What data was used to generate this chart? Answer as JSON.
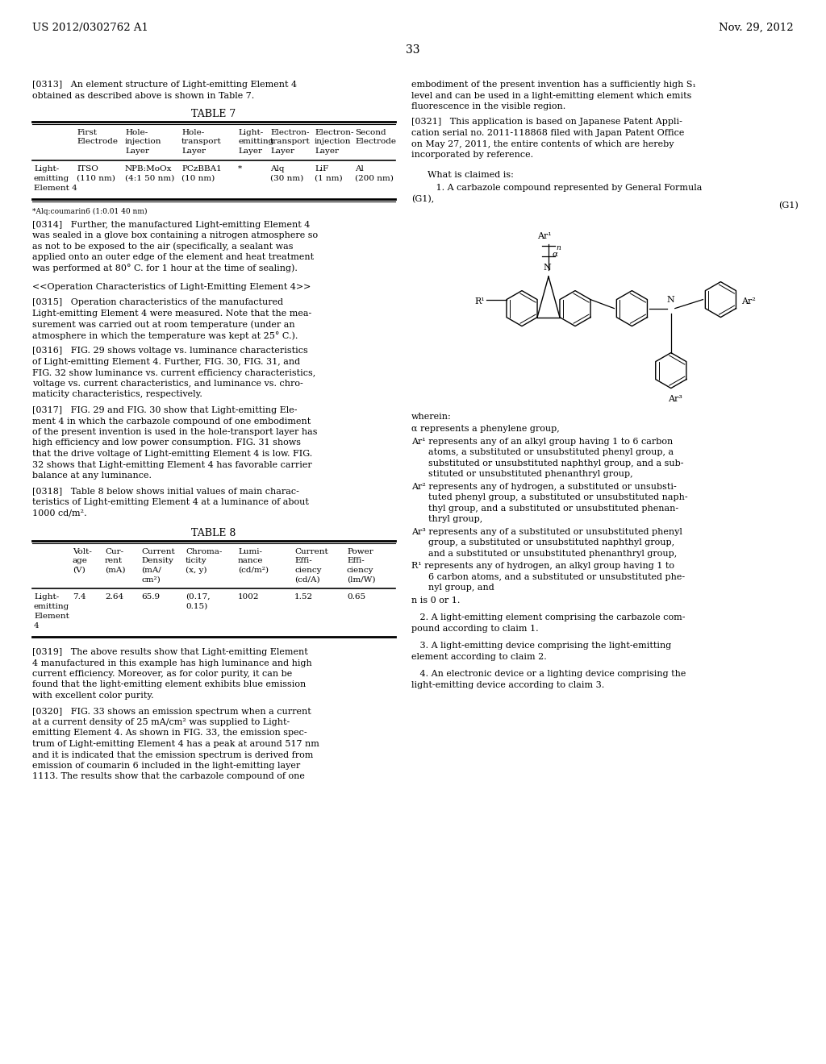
{
  "page_number": "33",
  "header_left": "US 2012/0302762 A1",
  "header_right": "Nov. 29, 2012",
  "background_color": "#ffffff",
  "paragraph_0313": "[0313]   An element structure of Light-emitting Element 4\nobtained as described above is shown in Table 7.",
  "table7_title": "TABLE 7",
  "table7_footnote": "*Alq:coumarin6 (1:0.01 40 nm)",
  "paragraph_0314": "[0314]   Further, the manufactured Light-emitting Element 4\nwas sealed in a glove box containing a nitrogen atmosphere so\nas not to be exposed to the air (specifically, a sealant was\napplied onto an outer edge of the element and heat treatment\nwas performed at 80° C. for 1 hour at the time of sealing).",
  "paragraph_operation_header": "<<Operation Characteristics of Light-Emitting Element 4>>",
  "paragraph_0315": "[0315]   Operation characteristics of the manufactured\nLight-emitting Element 4 were measured. Note that the mea-\nsurement was carried out at room temperature (under an\natmosphere in which the temperature was kept at 25° C.).",
  "paragraph_0316": "[0316]   FIG. 29 shows voltage vs. luminance characteristics\nof Light-emitting Element 4. Further, FIG. 30, FIG. 31, and\nFIG. 32 show luminance vs. current efficiency characteristics,\nvoltage vs. current characteristics, and luminance vs. chro-\nmaticity characteristics, respectively.",
  "paragraph_0317": "[0317]   FIG. 29 and FIG. 30 show that Light-emitting Ele-\nment 4 in which the carbazole compound of one embodiment\nof the present invention is used in the hole-transport layer has\nhigh efficiency and low power consumption. FIG. 31 shows\nthat the drive voltage of Light-emitting Element 4 is low. FIG.\n32 shows that Light-emitting Element 4 has favorable carrier\nbalance at any luminance.",
  "paragraph_0318": "[0318]   Table 8 below shows initial values of main charac-\nteristics of Light-emitting Element 4 at a luminance of about\n1000 cd/m².",
  "table8_title": "TABLE 8",
  "paragraph_0319": "[0319]   The above results show that Light-emitting Element\n4 manufactured in this example has high luminance and high\ncurrent efficiency. Moreover, as for color purity, it can be\nfound that the light-emitting element exhibits blue emission\nwith excellent color purity.",
  "paragraph_0320": "[0320]   FIG. 33 shows an emission spectrum when a current\nat a current density of 25 mA/cm² was supplied to Light-\nemitting Element 4. As shown in FIG. 33, the emission spec-\ntrum of Light-emitting Element 4 has a peak at around 517 nm\nand it is indicated that the emission spectrum is derived from\nemission of coumarin 6 included in the light-emitting layer\n1113. The results show that the carbazole compound of one",
  "right_col_0320cont": "embodiment of the present invention has a sufficiently high S₁\nlevel and can be used in a light-emitting element which emits\nfluorescence in the visible region.",
  "paragraph_0321": "[0321]   This application is based on Japanese Patent Appli-\ncation serial no. 2011-118868 filed with Japan Patent Office\non May 27, 2011, the entire contents of which are hereby\nincorporated by reference.",
  "claims_header": "What is claimed is:",
  "claim_1a": "   1. A carbazole compound represented by General Formula",
  "claim_1b": "(G1),",
  "formula_label": "(G1)",
  "claim_1_wherein": "wherein:",
  "claim_1_alpha": "α represents a phenylene group,",
  "claim_1_ar1": "Ar¹ represents any of an alkyl group having 1 to 6 carbon\n      atoms, a substituted or unsubstituted phenyl group, a\n      substituted or unsubstituted naphthyl group, and a sub-\n      stituted or unsubstituted phenanthryl group,",
  "claim_1_ar2": "Ar² represents any of hydrogen, a substituted or unsubsti-\n      tuted phenyl group, a substituted or unsubstituted naph-\n      thyl group, and a substituted or unsubstituted phenan-\n      thryl group,",
  "claim_1_ar3": "Ar³ represents any of a substituted or unsubstituted phenyl\n      group, a substituted or unsubstituted naphthyl group,\n      and a substituted or unsubstituted phenanthryl group,",
  "claim_1_r1": "R¹ represents any of hydrogen, an alkyl group having 1 to\n      6 carbon atoms, and a substituted or unsubstituted phe-\n      nyl group, and",
  "claim_1_n": "n is 0 or 1.",
  "claim_2": "   2. A light-emitting element comprising the carbazole com-\npound according to claim 1.",
  "claim_3": "   3. A light-emitting device comprising the light-emitting\nelement according to claim 2.",
  "claim_4": "   4. An electronic device or a lighting device comprising the\nlight-emitting device according to claim 3."
}
